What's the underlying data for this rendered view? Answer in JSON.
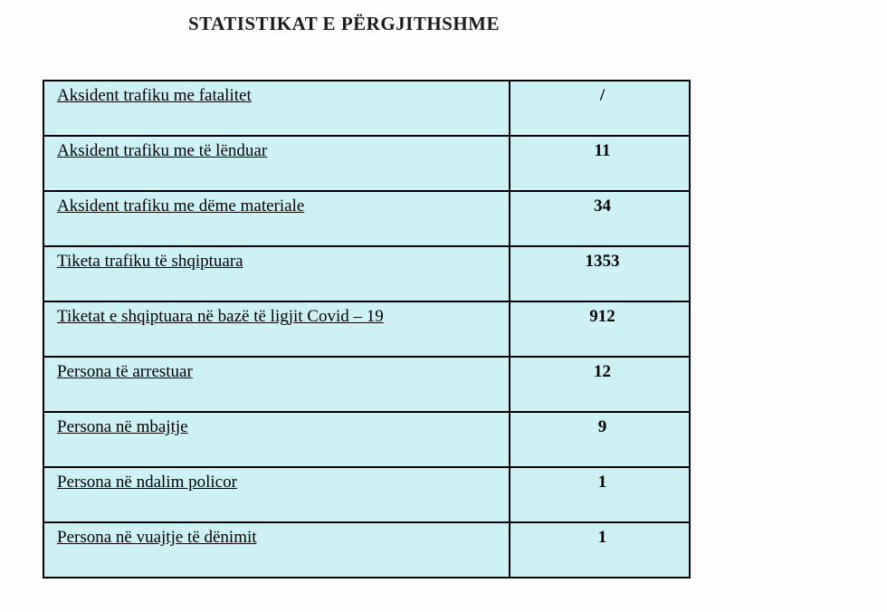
{
  "title": "STATISTIKAT E PËRGJITHSHME",
  "table": {
    "cell_background": "#cdf2f5",
    "border_color": "#000000",
    "rows": [
      {
        "label": "Aksident trafiku me fatalitet",
        "value": "/"
      },
      {
        "label": "Aksident trafiku  me të lënduar",
        "value": "11"
      },
      {
        "label": "Aksident trafiku  me dëme materiale",
        "value": "34"
      },
      {
        "label": "Tiketa trafiku të shqiptuara",
        "value": "1353"
      },
      {
        "label": "Tiketat e shqiptuara në bazë të ligjit Covid – 19",
        "value": "912"
      },
      {
        "label": "Persona të arrestuar",
        "value": "12"
      },
      {
        "label": "Persona në mbajtje",
        "value": "9"
      },
      {
        "label": "Persona në ndalim policor",
        "value": "1"
      },
      {
        "label": "Persona në vuajtje të dënimit",
        "value": "1"
      }
    ]
  }
}
